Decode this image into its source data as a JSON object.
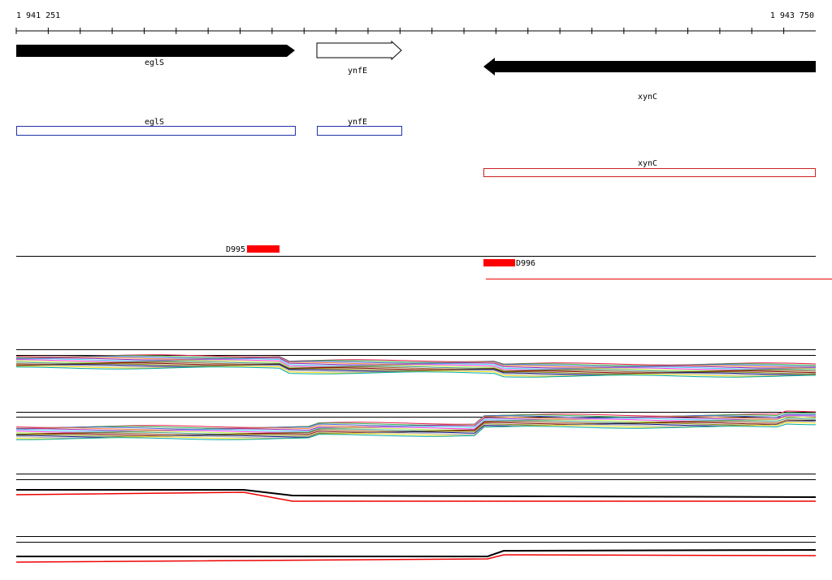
{
  "ruler": {
    "start": "1 941 251",
    "end": "1 943 750"
  },
  "genes": [
    {
      "label": "eglS"
    },
    {
      "label": "ynfE"
    },
    {
      "label": "xynC"
    }
  ],
  "boxes": [
    {
      "label": "eglS"
    },
    {
      "label": "ynfE"
    },
    {
      "label": "xynC"
    }
  ],
  "features": [
    {
      "label": "D995"
    },
    {
      "label": "D996"
    }
  ]
}
